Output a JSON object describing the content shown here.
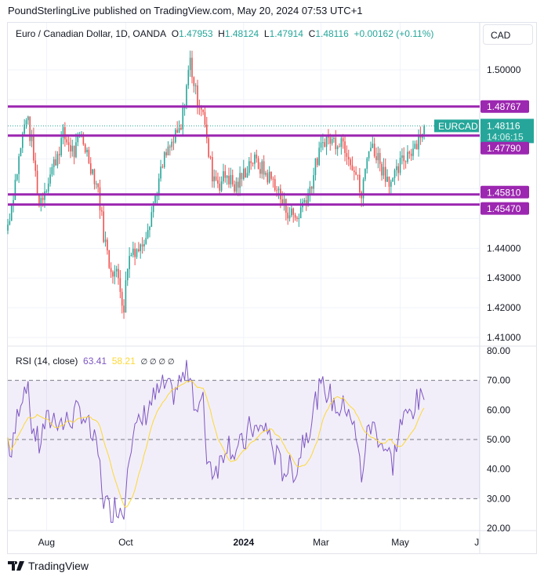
{
  "publisher": "PoundSterlingLive published on TradingView.com, May 20, 2024 07:53 UTC+1",
  "legend": {
    "title": "Euro / Canadian Dollar, 1D, OANDA",
    "o_label": "O",
    "o": "1.47953",
    "h_label": "H",
    "h": "1.48124",
    "l_label": "L",
    "l": "1.47914",
    "c_label": "C",
    "c": "1.48116",
    "change": "+0.00162 (+0.11%)"
  },
  "currency": "CAD",
  "rsi_legend": {
    "label": "RSI (14, close)",
    "rsi": "63.41",
    "ma": "58.21",
    "na": "∅ ∅ ∅ ∅"
  },
  "symbol_tag": "EURCAD",
  "current": {
    "price": "1.48116",
    "countdown": "14:06:15",
    "value": 1.48116
  },
  "levels": [
    {
      "label": "1.48767",
      "value": 1.48767
    },
    {
      "label": "1.47790",
      "value": 1.4779
    },
    {
      "label": "1.45810",
      "value": 1.4581
    },
    {
      "label": "1.45470",
      "value": 1.4547
    }
  ],
  "colors": {
    "up": "#26a69a",
    "down": "#ef5350",
    "level": "#9c27b0",
    "rsi": "#7e57c2",
    "rsi_ma": "#fdd835"
  },
  "brand": "TradingView",
  "chart_data": {
    "type": "candlestick",
    "price_ticks": [
      "1.50000",
      "1.49000",
      "1.48000",
      "1.47000",
      "1.46000",
      "1.45000",
      "1.44000",
      "1.43000",
      "1.42000",
      "1.41000"
    ],
    "rsi_ticks": [
      "80.00",
      "70.00",
      "60.00",
      "50.00",
      "40.00",
      "30.00",
      "20.00"
    ],
    "time_labels": [
      {
        "label": "Aug",
        "day": 21
      },
      {
        "label": "Oct",
        "day": 64
      },
      {
        "label": "2024",
        "day": 128,
        "bold": true
      },
      {
        "label": "Mar",
        "day": 170
      },
      {
        "label": "May",
        "day": 213
      },
      {
        "label": "Ju",
        "day": 256
      }
    ],
    "ylim": [
      1.41,
      1.5
    ],
    "rsi_lim": [
      20,
      80
    ],
    "points": [
      [
        0,
        1.448,
        50
      ],
      [
        2,
        1.455,
        44
      ],
      [
        6,
        1.47,
        62
      ],
      [
        10,
        1.485,
        70
      ],
      [
        13,
        1.475,
        55
      ],
      [
        17,
        1.455,
        48
      ],
      [
        20,
        1.46,
        55
      ],
      [
        26,
        1.47,
        58
      ],
      [
        30,
        1.478,
        55
      ],
      [
        36,
        1.472,
        58
      ],
      [
        40,
        1.478,
        60
      ],
      [
        45,
        1.468,
        52
      ],
      [
        49,
        1.46,
        45
      ],
      [
        52,
        1.445,
        30
      ],
      [
        55,
        1.435,
        26
      ],
      [
        60,
        1.43,
        28
      ],
      [
        63,
        1.42,
        25
      ],
      [
        65,
        1.435,
        45
      ],
      [
        68,
        1.44,
        52
      ],
      [
        72,
        1.44,
        55
      ],
      [
        77,
        1.45,
        62
      ],
      [
        81,
        1.46,
        65
      ],
      [
        85,
        1.47,
        68
      ],
      [
        89,
        1.475,
        65
      ],
      [
        94,
        1.48,
        70
      ],
      [
        97,
        1.495,
        72
      ],
      [
        99,
        1.503,
        74
      ],
      [
        102,
        1.492,
        60
      ],
      [
        106,
        1.487,
        62
      ],
      [
        108,
        1.475,
        45
      ],
      [
        111,
        1.465,
        40
      ],
      [
        115,
        1.462,
        42
      ],
      [
        119,
        1.465,
        50
      ],
      [
        123,
        1.46,
        46
      ],
      [
        128,
        1.465,
        48
      ],
      [
        132,
        1.47,
        55
      ],
      [
        136,
        1.468,
        52
      ],
      [
        140,
        1.465,
        55
      ],
      [
        145,
        1.462,
        45
      ],
      [
        149,
        1.455,
        40
      ],
      [
        153,
        1.452,
        40
      ],
      [
        157,
        1.45,
        40
      ],
      [
        160,
        1.455,
        50
      ],
      [
        164,
        1.46,
        55
      ],
      [
        168,
        1.47,
        65
      ],
      [
        172,
        1.477,
        68
      ],
      [
        177,
        1.476,
        62
      ],
      [
        181,
        1.477,
        60
      ],
      [
        185,
        1.472,
        62
      ],
      [
        189,
        1.465,
        50
      ],
      [
        192,
        1.457,
        38
      ],
      [
        196,
        1.475,
        55
      ],
      [
        200,
        1.472,
        53
      ],
      [
        204,
        1.466,
        48
      ],
      [
        209,
        1.462,
        42
      ],
      [
        213,
        1.468,
        55
      ],
      [
        217,
        1.472,
        58
      ],
      [
        221,
        1.475,
        62
      ],
      [
        226,
        1.48116,
        63.41
      ]
    ]
  }
}
